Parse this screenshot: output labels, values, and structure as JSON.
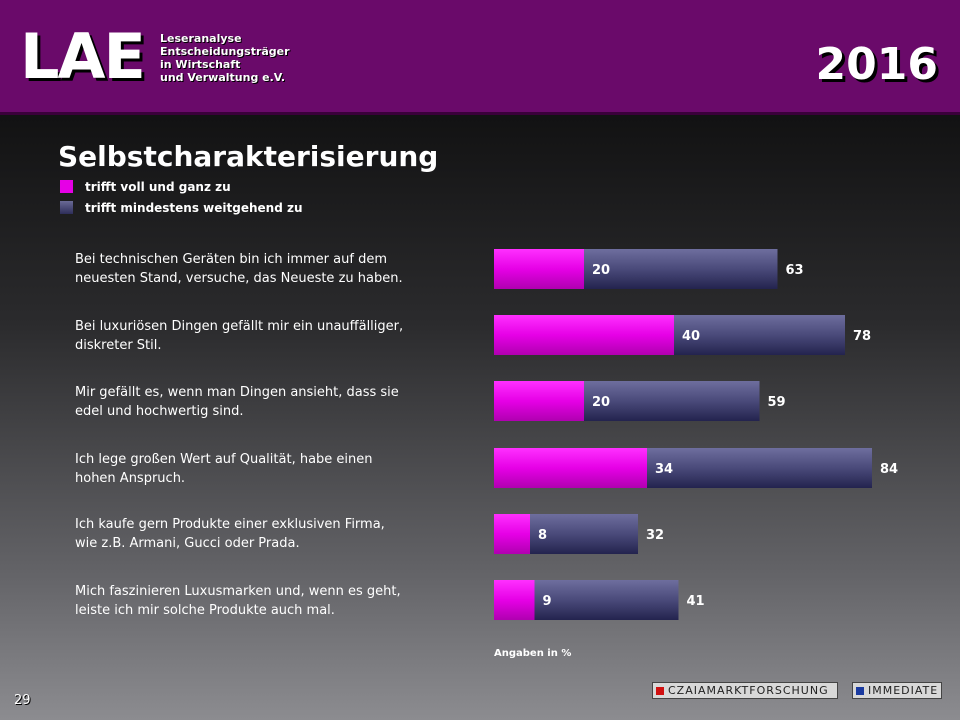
{
  "header": {
    "logo": "LAE",
    "logo_lines": [
      "Leseranalyse",
      "Entscheidungsträger",
      "in Wirtschaft",
      "und Verwaltung e.V."
    ],
    "year": "2016"
  },
  "title": "Selbstcharakterisierung",
  "legend": [
    {
      "label": "trifft voll und ganz zu",
      "color": "#e600e6"
    },
    {
      "label": "trifft mindestens weitgehend zu",
      "color": "#4a4a7a"
    }
  ],
  "questions": [
    [
      "Bei technischen Geräten bin ich immer auf dem",
      "neuesten Stand, versuche, das Neueste zu haben."
    ],
    [
      "Bei luxuriösen Dingen gefällt mir ein unauffälliger,",
      "diskreter Stil."
    ],
    [
      "Mir gefällt es, wenn man Dingen ansieht, dass sie",
      "edel und hochwertig sind."
    ],
    [
      "Ich lege großen Wert auf Qualität, habe einen",
      "hohen Anspruch."
    ],
    [
      "Ich kaufe gern Produkte einer exklusiven Firma,",
      "wie z.B. Armani, Gucci oder Prada."
    ],
    [
      "Mich faszinieren Luxusmarken und, wenn es geht,",
      "leiste ich mir solche Produkte auch mal."
    ]
  ],
  "chart_data": {
    "type": "bar",
    "orientation": "horizontal",
    "categories": [
      "Bei technischen Geräten bin ich immer auf dem neuesten Stand, versuche, das Neueste zu haben.",
      "Bei luxuriösen Dingen gefällt mir ein unauffälliger, diskreter Stil.",
      "Mir gefällt es, wenn man Dingen ansieht, dass sie edel und hochwertig sind.",
      "Ich lege großen Wert auf Qualität, habe einen hohen Anspruch.",
      "Ich kaufe gern Produkte einer exklusiven Firma, wie z.B. Armani, Gucci oder Prada.",
      "Mich faszinieren Luxusmarken und, wenn es geht, leiste ich mir solche Produkte auch mal."
    ],
    "series": [
      {
        "name": "trifft voll und ganz zu",
        "values": [
          20,
          40,
          20,
          34,
          8,
          9
        ],
        "color": "#e600e6"
      },
      {
        "name": "trifft mindestens weitgehend zu",
        "values": [
          63,
          78,
          59,
          84,
          32,
          41
        ],
        "color": "#4a4a7a"
      }
    ],
    "overlay": true,
    "unit_note": "Angaben in %"
  },
  "footer": {
    "page_number": "29",
    "brand_left": "CZAIAMARKTFORSCHUNG",
    "brand_right": "IMMEDIATE"
  }
}
